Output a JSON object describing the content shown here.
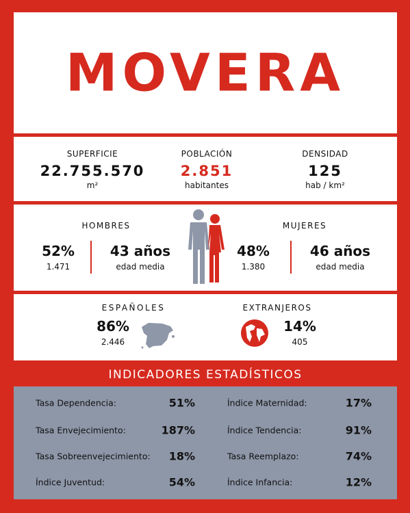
{
  "title": "MOVERA",
  "summary": [
    {
      "label": "SUPERFICIE",
      "value": "22.755.570",
      "unit": "m²"
    },
    {
      "label": "POBLACIÓN",
      "value": "2.851",
      "unit": "habitantes"
    },
    {
      "label": "DENSIDAD",
      "value": "125",
      "unit": "hab / km²"
    }
  ],
  "gender": {
    "men": {
      "label": "HOMBRES",
      "percent": "52%",
      "count": "1.471",
      "age": "43 años",
      "age_label": "edad media"
    },
    "women": {
      "label": "MUJERES",
      "percent": "48%",
      "count": "1.380",
      "age": "46 años",
      "age_label": "edad media"
    }
  },
  "nationality": {
    "spanish": {
      "label": "ESPAÑOLES",
      "percent": "86%",
      "count": "2.446"
    },
    "foreign": {
      "label": "EXTRANJEROS",
      "percent": "14%",
      "count": "405"
    }
  },
  "indicators": {
    "title": "INDICADORES ESTADÍSTICOS",
    "left": [
      {
        "label": "Tasa Dependencia:",
        "value": "51%"
      },
      {
        "label": "Tasa Envejecimiento:",
        "value": "187%"
      },
      {
        "label": "Tasa Sobreenvejecimiento:",
        "value": "18%"
      },
      {
        "label": "Índice Juventud:",
        "value": "54%"
      }
    ],
    "right": [
      {
        "label": "Índice Maternidad:",
        "value": "17%"
      },
      {
        "label": "Índice Tendencia:",
        "value": "91%"
      },
      {
        "label": "Tasa Reemplazo:",
        "value": "74%"
      },
      {
        "label": "Índice Infancia:",
        "value": "12%"
      }
    ]
  }
}
